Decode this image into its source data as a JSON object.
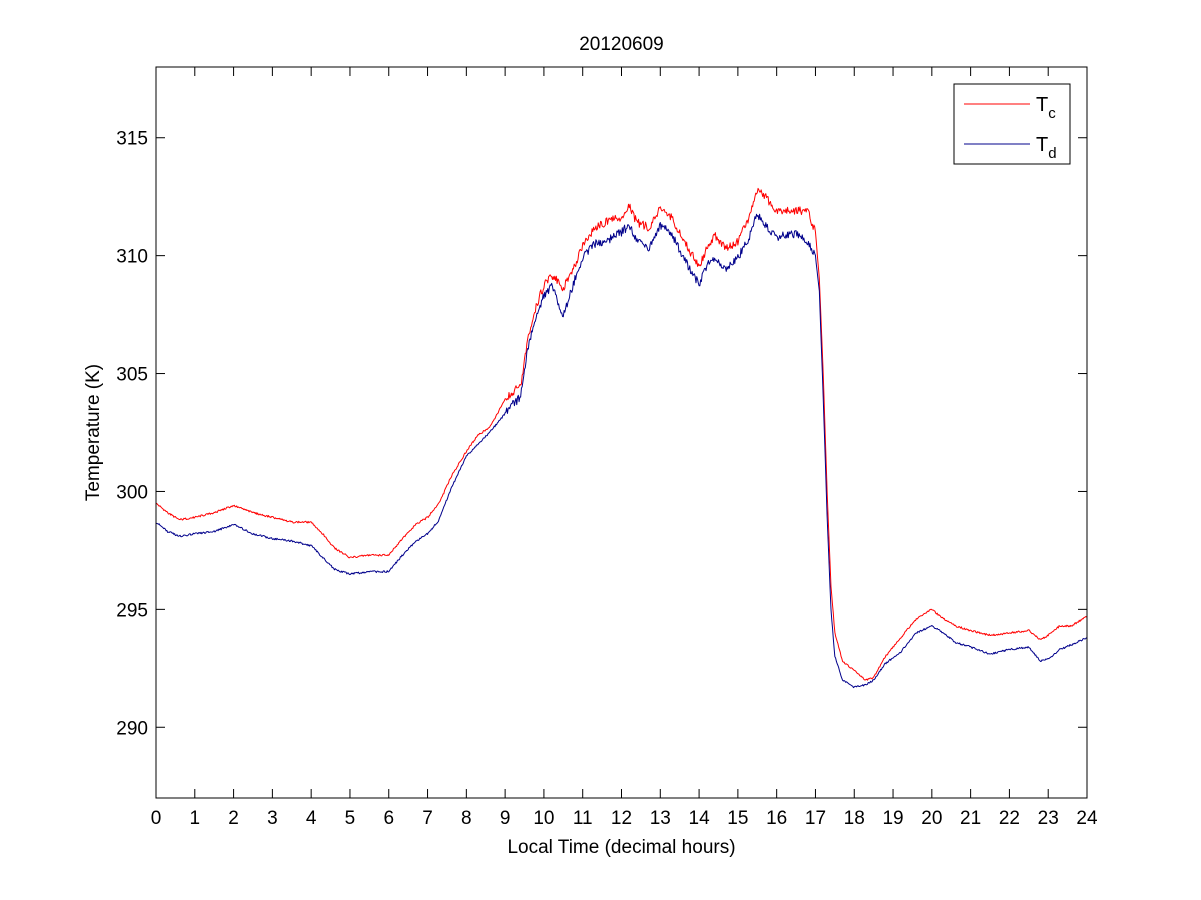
{
  "chart_data": {
    "type": "line",
    "title": "20120609",
    "xlabel": "Local Time (decimal hours)",
    "ylabel": "Temperature (K)",
    "xlim": [
      0,
      24
    ],
    "ylim": [
      287,
      318
    ],
    "xticks": [
      0,
      1,
      2,
      3,
      4,
      5,
      6,
      7,
      8,
      9,
      10,
      11,
      12,
      13,
      14,
      15,
      16,
      17,
      18,
      19,
      20,
      21,
      22,
      23,
      24
    ],
    "yticks": [
      290,
      295,
      300,
      305,
      310,
      315
    ],
    "grid": false,
    "legend": {
      "placement": "top-right",
      "entries": [
        {
          "main": "T",
          "sub": "c",
          "color": "#ff0000"
        },
        {
          "main": "T",
          "sub": "d",
          "color": "#00008b"
        }
      ]
    },
    "series": [
      {
        "legend_main": "T",
        "legend_sub": "c",
        "color": "#ff0000",
        "points": [
          [
            0,
            299.5
          ],
          [
            0.3,
            299.1
          ],
          [
            0.6,
            298.8
          ],
          [
            1,
            298.9
          ],
          [
            1.5,
            299.1
          ],
          [
            2,
            299.4
          ],
          [
            2.5,
            299.1
          ],
          [
            3,
            298.9
          ],
          [
            3.5,
            298.7
          ],
          [
            4,
            298.7
          ],
          [
            4.3,
            298.2
          ],
          [
            4.6,
            297.6
          ],
          [
            5,
            297.2
          ],
          [
            5.5,
            297.3
          ],
          [
            6,
            297.3
          ],
          [
            6.3,
            297.9
          ],
          [
            6.7,
            298.6
          ],
          [
            7,
            298.9
          ],
          [
            7.3,
            299.5
          ],
          [
            7.6,
            300.6
          ],
          [
            8,
            301.7
          ],
          [
            8.3,
            302.4
          ],
          [
            8.6,
            302.7
          ],
          [
            9,
            303.9
          ],
          [
            9.2,
            304.2
          ],
          [
            9.4,
            304.5
          ],
          [
            9.6,
            306.5
          ],
          [
            9.8,
            307.9
          ],
          [
            10,
            308.7
          ],
          [
            10.2,
            309.2
          ],
          [
            10.5,
            308.6
          ],
          [
            10.8,
            309.6
          ],
          [
            11,
            310.4
          ],
          [
            11.3,
            311.2
          ],
          [
            11.7,
            311.5
          ],
          [
            12,
            311.6
          ],
          [
            12.2,
            312.1
          ],
          [
            12.4,
            311.4
          ],
          [
            12.7,
            311.2
          ],
          [
            13,
            312.0
          ],
          [
            13.3,
            311.6
          ],
          [
            13.6,
            310.6
          ],
          [
            14,
            309.6
          ],
          [
            14.2,
            310.3
          ],
          [
            14.4,
            310.9
          ],
          [
            14.7,
            310.3
          ],
          [
            15,
            310.6
          ],
          [
            15.3,
            311.7
          ],
          [
            15.5,
            312.8
          ],
          [
            15.7,
            312.5
          ],
          [
            16,
            311.9
          ],
          [
            16.5,
            311.9
          ],
          [
            16.8,
            311.9
          ],
          [
            17,
            311.0
          ],
          [
            17.1,
            309.0
          ],
          [
            17.2,
            305.0
          ],
          [
            17.3,
            300.0
          ],
          [
            17.4,
            296.0
          ],
          [
            17.5,
            294.0
          ],
          [
            17.7,
            292.8
          ],
          [
            18,
            292.4
          ],
          [
            18.3,
            292.0
          ],
          [
            18.5,
            292.1
          ],
          [
            18.8,
            293.0
          ],
          [
            19.2,
            293.8
          ],
          [
            19.6,
            294.6
          ],
          [
            20,
            295.0
          ],
          [
            20.3,
            294.6
          ],
          [
            20.6,
            294.3
          ],
          [
            21,
            294.1
          ],
          [
            21.5,
            293.9
          ],
          [
            22,
            294.0
          ],
          [
            22.5,
            294.1
          ],
          [
            22.8,
            293.7
          ],
          [
            23,
            293.9
          ],
          [
            23.3,
            294.3
          ],
          [
            23.6,
            294.3
          ],
          [
            24,
            294.7
          ]
        ]
      },
      {
        "legend_main": "T",
        "legend_sub": "d",
        "color": "#00008b",
        "points": [
          [
            0,
            298.7
          ],
          [
            0.3,
            298.3
          ],
          [
            0.6,
            298.1
          ],
          [
            1,
            298.2
          ],
          [
            1.5,
            298.3
          ],
          [
            2,
            298.6
          ],
          [
            2.5,
            298.2
          ],
          [
            3,
            298.0
          ],
          [
            3.5,
            297.9
          ],
          [
            4,
            297.7
          ],
          [
            4.3,
            297.2
          ],
          [
            4.6,
            296.7
          ],
          [
            5,
            296.5
          ],
          [
            5.5,
            296.6
          ],
          [
            6,
            296.6
          ],
          [
            6.3,
            297.2
          ],
          [
            6.7,
            297.9
          ],
          [
            7,
            298.2
          ],
          [
            7.3,
            298.8
          ],
          [
            7.6,
            300.1
          ],
          [
            8,
            301.5
          ],
          [
            8.3,
            302.0
          ],
          [
            8.6,
            302.5
          ],
          [
            9,
            303.3
          ],
          [
            9.2,
            303.7
          ],
          [
            9.4,
            304.0
          ],
          [
            9.6,
            306.2
          ],
          [
            9.8,
            307.5
          ],
          [
            10,
            308.3
          ],
          [
            10.2,
            308.7
          ],
          [
            10.5,
            307.5
          ],
          [
            10.8,
            309.0
          ],
          [
            11,
            309.9
          ],
          [
            11.3,
            310.5
          ],
          [
            11.7,
            310.7
          ],
          [
            12,
            311.0
          ],
          [
            12.2,
            311.3
          ],
          [
            12.4,
            310.6
          ],
          [
            12.7,
            310.3
          ],
          [
            13,
            311.3
          ],
          [
            13.3,
            310.9
          ],
          [
            13.6,
            309.9
          ],
          [
            14,
            308.8
          ],
          [
            14.2,
            309.6
          ],
          [
            14.4,
            309.8
          ],
          [
            14.7,
            309.4
          ],
          [
            15,
            309.9
          ],
          [
            15.3,
            310.8
          ],
          [
            15.5,
            311.8
          ],
          [
            15.7,
            311.3
          ],
          [
            16,
            310.8
          ],
          [
            16.5,
            310.9
          ],
          [
            16.8,
            310.6
          ],
          [
            17,
            310.0
          ],
          [
            17.1,
            308.5
          ],
          [
            17.2,
            304.0
          ],
          [
            17.3,
            299.0
          ],
          [
            17.4,
            295.0
          ],
          [
            17.5,
            293.0
          ],
          [
            17.7,
            292.0
          ],
          [
            18,
            291.7
          ],
          [
            18.3,
            291.8
          ],
          [
            18.5,
            292.0
          ],
          [
            18.8,
            292.7
          ],
          [
            19.2,
            293.2
          ],
          [
            19.6,
            294.0
          ],
          [
            20,
            294.3
          ],
          [
            20.3,
            294.0
          ],
          [
            20.6,
            293.6
          ],
          [
            21,
            293.4
          ],
          [
            21.5,
            293.1
          ],
          [
            22,
            293.3
          ],
          [
            22.5,
            293.4
          ],
          [
            22.8,
            292.8
          ],
          [
            23,
            292.9
          ],
          [
            23.3,
            293.3
          ],
          [
            23.6,
            293.5
          ],
          [
            24,
            293.8
          ]
        ]
      }
    ]
  }
}
